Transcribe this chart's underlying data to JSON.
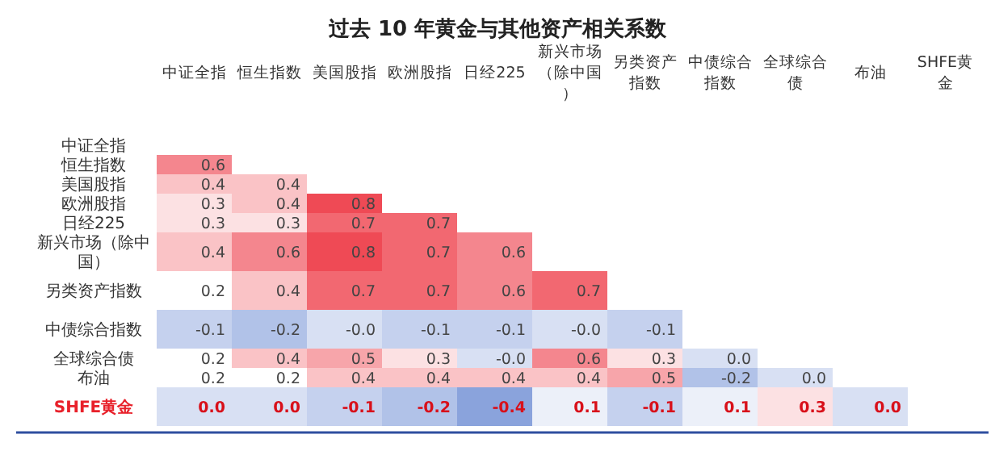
{
  "chart_data": {
    "type": "heatmap",
    "title": "过去 10 年黄金与其他资产相关系数",
    "categories": [
      "中证全指",
      "恒生指数",
      "美国股指",
      "欧洲股指",
      "日经225",
      "新兴市场（除中国）",
      "另类资产指数",
      "中债综合指数",
      "全球综合债",
      "布油",
      "SHFE黄金"
    ],
    "y_categories": [
      "中证全指",
      "恒生指数",
      "美国股指",
      "欧洲股指",
      "日经225",
      "新兴市场（除中国）",
      "另类资产指数",
      "中债综合指数",
      "全球综合债",
      "布油",
      "SHFE黄金"
    ],
    "colors": [
      "#8aa3dc",
      "#ffffff",
      "#ef4a55"
    ],
    "cells": [
      [
        null,
        null,
        null,
        null,
        null,
        null,
        null,
        null,
        null,
        null,
        null
      ],
      [
        0.6,
        null,
        null,
        null,
        null,
        null,
        null,
        null,
        null,
        null,
        null
      ],
      [
        0.4,
        0.4,
        null,
        null,
        null,
        null,
        null,
        null,
        null,
        null,
        null
      ],
      [
        0.3,
        0.4,
        0.8,
        null,
        null,
        null,
        null,
        null,
        null,
        null,
        null
      ],
      [
        0.3,
        0.3,
        0.7,
        0.7,
        null,
        null,
        null,
        null,
        null,
        null,
        null
      ],
      [
        0.4,
        0.6,
        0.8,
        0.7,
        0.6,
        null,
        null,
        null,
        null,
        null,
        null
      ],
      [
        0.2,
        0.4,
        0.7,
        0.7,
        0.6,
        0.7,
        null,
        null,
        null,
        null,
        null
      ],
      [
        -0.1,
        -0.2,
        -0.0,
        -0.1,
        -0.1,
        -0.0,
        -0.1,
        null,
        null,
        null,
        null
      ],
      [
        0.2,
        0.4,
        0.5,
        0.3,
        -0.0,
        0.6,
        0.3,
        0.0,
        null,
        null,
        null
      ],
      [
        0.2,
        0.2,
        0.4,
        0.4,
        0.4,
        0.4,
        0.5,
        -0.2,
        0.0,
        null,
        null
      ],
      [
        0.0,
        0.0,
        -0.1,
        -0.2,
        -0.4,
        0.1,
        -0.1,
        0.1,
        0.3,
        0.0,
        null
      ]
    ],
    "cell_labels": [
      [
        null,
        null,
        null,
        null,
        null,
        null,
        null,
        null,
        null,
        null,
        null
      ],
      [
        "0.6",
        null,
        null,
        null,
        null,
        null,
        null,
        null,
        null,
        null,
        null
      ],
      [
        "0.4",
        "0.4",
        null,
        null,
        null,
        null,
        null,
        null,
        null,
        null,
        null
      ],
      [
        "0.3",
        "0.4",
        "0.8",
        null,
        null,
        null,
        null,
        null,
        null,
        null,
        null
      ],
      [
        "0.3",
        "0.3",
        "0.7",
        "0.7",
        null,
        null,
        null,
        null,
        null,
        null,
        null
      ],
      [
        "0.4",
        "0.6",
        "0.8",
        "0.7",
        "0.6",
        null,
        null,
        null,
        null,
        null,
        null
      ],
      [
        "0.2",
        "0.4",
        "0.7",
        "0.7",
        "0.6",
        "0.7",
        null,
        null,
        null,
        null,
        null
      ],
      [
        "-0.1",
        "-0.2",
        "-0.0",
        "-0.1",
        "-0.1",
        "-0.0",
        "-0.1",
        null,
        null,
        null,
        null
      ],
      [
        "0.2",
        "0.4",
        "0.5",
        "0.3",
        "-0.0",
        "0.6",
        "0.3",
        "0.0",
        null,
        null,
        null
      ],
      [
        "0.2",
        "0.2",
        "0.4",
        "0.4",
        "0.4",
        "0.4",
        "0.5",
        "-0.2",
        "0.0",
        null,
        null
      ],
      [
        "0.0",
        "0.0",
        "-0.1",
        "-0.2",
        "-0.4",
        "0.1",
        "-0.1",
        "0.1",
        "0.3",
        "0.0",
        null
      ]
    ]
  }
}
